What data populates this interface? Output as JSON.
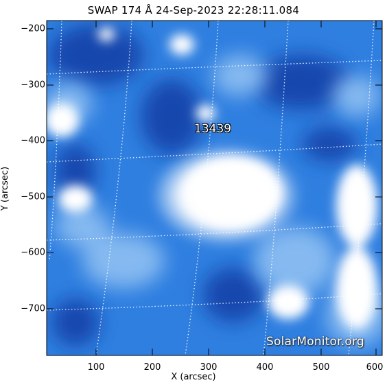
{
  "title": "SWAP 174 Å 24-Sep-2023 22:28:11.084",
  "x_axis": {
    "label": "X (arcsec)",
    "ticks": [
      "100",
      "200",
      "300",
      "400",
      "500",
      "600"
    ]
  },
  "y_axis": {
    "label": "Y (arcsec)",
    "ticks": [
      "−200",
      "−300",
      "−400",
      "−500",
      "−600",
      "−700"
    ]
  },
  "region_label": "13439",
  "watermark": "SolarMonitor.org",
  "colors": {
    "dark_blue": "#1a4fb5",
    "mid_blue": "#2f7fe0",
    "light_blue": "#8fc0f2",
    "white": "#ffffff"
  }
}
